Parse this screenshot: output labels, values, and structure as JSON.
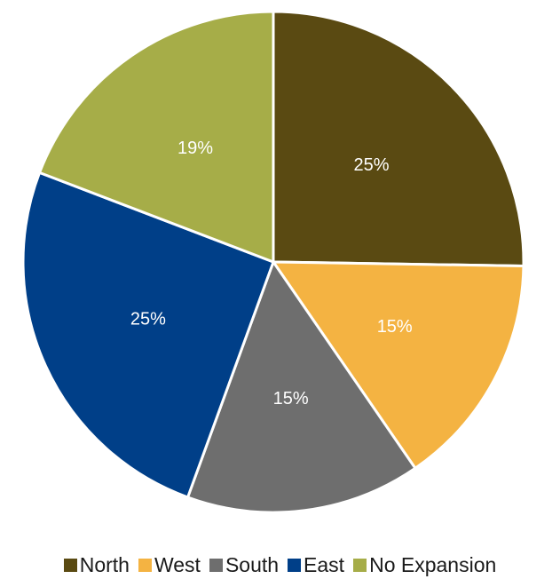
{
  "chart_data": {
    "type": "pie",
    "title": "",
    "categories": [
      "North",
      "West",
      "South",
      "East",
      "No Expansion"
    ],
    "values": [
      25,
      15,
      15,
      25,
      19
    ],
    "labels": [
      "25%",
      "15%",
      "15%",
      "25%",
      "19%"
    ],
    "colors": [
      "#5a4a12",
      "#f4b342",
      "#6e6e6e",
      "#003f88",
      "#a6ad48"
    ],
    "legend_position": "bottom",
    "start_angle": "12 o'clock, clockwise"
  }
}
